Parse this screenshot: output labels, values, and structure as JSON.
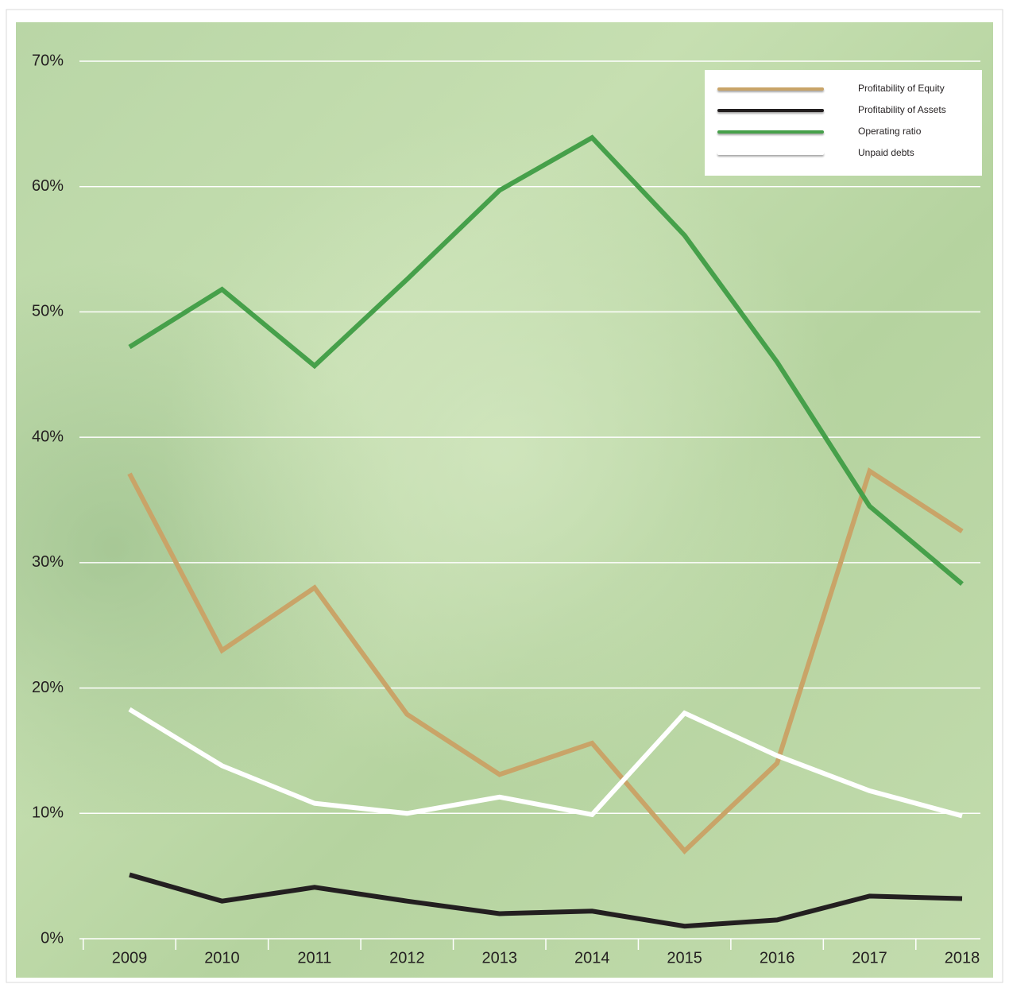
{
  "chart_data": {
    "type": "line",
    "categories": [
      "2009",
      "2010",
      "2011",
      "2012",
      "2013",
      "2014",
      "2015",
      "2016",
      "2017",
      "2018"
    ],
    "series": [
      {
        "name": "Profitability of Equity",
        "color": "#c9a468",
        "values": [
          37.1,
          23.0,
          28.0,
          17.9,
          13.1,
          15.6,
          7.0,
          14.0,
          37.3,
          32.5
        ]
      },
      {
        "name": "Profitability of Assets",
        "color": "#231f20",
        "values": [
          5.1,
          3.0,
          4.1,
          3.0,
          2.0,
          2.2,
          1.0,
          1.5,
          3.4,
          3.2
        ]
      },
      {
        "name": "Operating ratio",
        "color": "#46a04a",
        "values": [
          47.2,
          51.8,
          45.7,
          52.6,
          59.7,
          63.9,
          56.1,
          46.0,
          34.5,
          28.3
        ]
      },
      {
        "name": "Unpaid debts",
        "color": "#ffffff",
        "values": [
          18.3,
          13.8,
          10.8,
          10.0,
          11.3,
          9.9,
          18.0,
          14.6,
          11.8,
          9.8
        ]
      }
    ],
    "ylim": [
      0,
      70
    ],
    "yticks": [
      {
        "value": 0,
        "label": "0%"
      },
      {
        "value": 10,
        "label": "10%"
      },
      {
        "value": 20,
        "label": "20%"
      },
      {
        "value": 30,
        "label": "30%"
      },
      {
        "value": 40,
        "label": "40%"
      },
      {
        "value": 50,
        "label": "50%"
      },
      {
        "value": 60,
        "label": "60%"
      },
      {
        "value": 70,
        "label": "70%"
      }
    ],
    "grid": true,
    "legend": "top-right"
  }
}
